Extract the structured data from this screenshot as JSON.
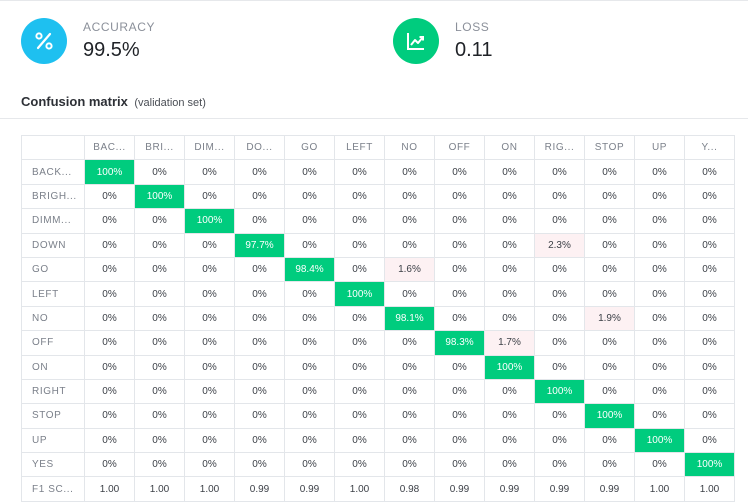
{
  "metrics": {
    "accuracy": {
      "label": "ACCURACY",
      "value": "99.5%",
      "icon": "percent-icon",
      "color": "#1ec0f0"
    },
    "loss": {
      "label": "LOSS",
      "value": "0.11",
      "icon": "trend-chart-icon",
      "color": "#00cc7e"
    }
  },
  "section": {
    "title": "Confusion matrix",
    "subtitle": "(validation set)"
  },
  "matrix": {
    "column_labels": [
      "BAC...",
      "BRI...",
      "DIM...",
      "DO...",
      "GO",
      "LEFT",
      "NO",
      "OFF",
      "ON",
      "RIG...",
      "STOP",
      "UP",
      "Y..."
    ],
    "rows": [
      {
        "label": "BACK...",
        "cells": [
          "100%",
          "0%",
          "0%",
          "0%",
          "0%",
          "0%",
          "0%",
          "0%",
          "0%",
          "0%",
          "0%",
          "0%",
          "0%"
        ]
      },
      {
        "label": "BRIGH...",
        "cells": [
          "0%",
          "100%",
          "0%",
          "0%",
          "0%",
          "0%",
          "0%",
          "0%",
          "0%",
          "0%",
          "0%",
          "0%",
          "0%"
        ]
      },
      {
        "label": "DIMM...",
        "cells": [
          "0%",
          "0%",
          "100%",
          "0%",
          "0%",
          "0%",
          "0%",
          "0%",
          "0%",
          "0%",
          "0%",
          "0%",
          "0%"
        ]
      },
      {
        "label": "DOWN",
        "cells": [
          "0%",
          "0%",
          "0%",
          "97.7%",
          "0%",
          "0%",
          "0%",
          "0%",
          "0%",
          "2.3%",
          "0%",
          "0%",
          "0%"
        ]
      },
      {
        "label": "GO",
        "cells": [
          "0%",
          "0%",
          "0%",
          "0%",
          "98.4%",
          "0%",
          "1.6%",
          "0%",
          "0%",
          "0%",
          "0%",
          "0%",
          "0%"
        ]
      },
      {
        "label": "LEFT",
        "cells": [
          "0%",
          "0%",
          "0%",
          "0%",
          "0%",
          "100%",
          "0%",
          "0%",
          "0%",
          "0%",
          "0%",
          "0%",
          "0%"
        ]
      },
      {
        "label": "NO",
        "cells": [
          "0%",
          "0%",
          "0%",
          "0%",
          "0%",
          "0%",
          "98.1%",
          "0%",
          "0%",
          "0%",
          "1.9%",
          "0%",
          "0%"
        ]
      },
      {
        "label": "OFF",
        "cells": [
          "0%",
          "0%",
          "0%",
          "0%",
          "0%",
          "0%",
          "0%",
          "98.3%",
          "1.7%",
          "0%",
          "0%",
          "0%",
          "0%"
        ]
      },
      {
        "label": "ON",
        "cells": [
          "0%",
          "0%",
          "0%",
          "0%",
          "0%",
          "0%",
          "0%",
          "0%",
          "100%",
          "0%",
          "0%",
          "0%",
          "0%"
        ]
      },
      {
        "label": "RIGHT",
        "cells": [
          "0%",
          "0%",
          "0%",
          "0%",
          "0%",
          "0%",
          "0%",
          "0%",
          "0%",
          "100%",
          "0%",
          "0%",
          "0%"
        ]
      },
      {
        "label": "STOP",
        "cells": [
          "0%",
          "0%",
          "0%",
          "0%",
          "0%",
          "0%",
          "0%",
          "0%",
          "0%",
          "0%",
          "100%",
          "0%",
          "0%"
        ]
      },
      {
        "label": "UP",
        "cells": [
          "0%",
          "0%",
          "0%",
          "0%",
          "0%",
          "0%",
          "0%",
          "0%",
          "0%",
          "0%",
          "0%",
          "100%",
          "0%"
        ]
      },
      {
        "label": "YES",
        "cells": [
          "0%",
          "0%",
          "0%",
          "0%",
          "0%",
          "0%",
          "0%",
          "0%",
          "0%",
          "0%",
          "0%",
          "0%",
          "100%"
        ]
      }
    ],
    "f1_row": {
      "label": "F1 SC...",
      "cells": [
        "1.00",
        "1.00",
        "1.00",
        "0.99",
        "0.99",
        "1.00",
        "0.98",
        "0.99",
        "0.99",
        "0.99",
        "0.99",
        "1.00",
        "1.00"
      ]
    },
    "colors": {
      "diagonal": "#00cc7e",
      "off_diagonal_error": "#fdf1f3"
    }
  }
}
